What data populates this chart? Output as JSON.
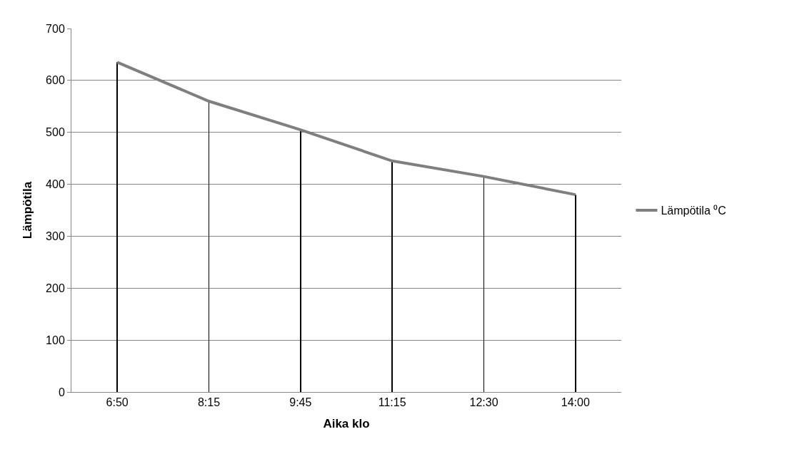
{
  "chart_data": {
    "type": "line",
    "xlabel": "Aika klo",
    "ylabel": "Lämpötila",
    "categories": [
      "6:50",
      "8:15",
      "9:45",
      "11:15",
      "12:30",
      "14:00"
    ],
    "series": [
      {
        "type": "bar",
        "color": "#000000",
        "values": [
          635,
          560,
          505,
          445,
          415,
          380
        ]
      },
      {
        "name": "Lämpötila ⁰C",
        "color": "#7f7f7f",
        "values": [
          635,
          560,
          505,
          445,
          415,
          380
        ]
      }
    ],
    "ylim": [
      0,
      700
    ],
    "yticks": [
      0,
      100,
      200,
      300,
      400,
      500,
      600,
      700
    ],
    "grid": "y",
    "legend": "right",
    "marker": "none",
    "line_style": "solid"
  }
}
